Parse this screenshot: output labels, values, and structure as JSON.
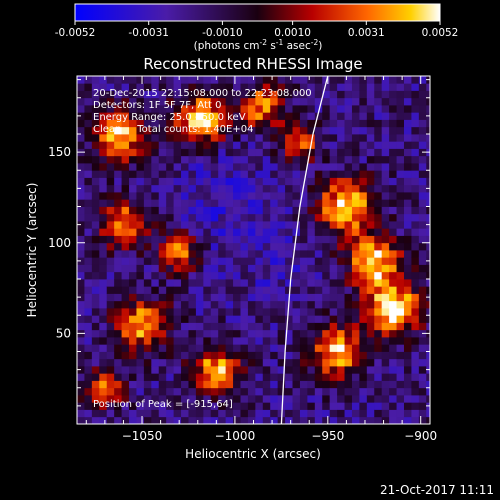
{
  "chart_data": {
    "type": "heatmap",
    "title": "Reconstructed RHESSI Image",
    "xlabel": "Heliocentric X (arcsec)",
    "ylabel": "Heliocentric Y (arcsec)",
    "xlim": [
      -1085,
      -895
    ],
    "ylim": [
      0,
      192
    ],
    "x_ticks": [
      -1050,
      -1000,
      -950,
      -900
    ],
    "y_ticks": [
      50,
      100,
      150
    ],
    "colorbar": {
      "min": -0.0052,
      "max": 0.0052,
      "ticks": [
        "-0.0052",
        "-0.0031",
        "-0.0010",
        "0.0010",
        "0.0031",
        "0.0052"
      ],
      "unit_text": "(photons cm",
      "unit_sup1": "-2",
      "unit_mid": " s",
      "unit_sup2": "-1",
      "unit_mid2": " asec",
      "unit_sup3": "-2",
      "unit_close": ")"
    },
    "annotations": [
      "20-Dec-2015 22:15:08.000 to 22:23:08.000",
      "Detectors: 1F 5F 7F, Att 0",
      "Energy Range: 25.0 - 50.0 keV",
      "Clean     Total counts: 1.40E+04"
    ],
    "peak_label": "Position of Peak = [-915,64]",
    "hot_regions": [
      {
        "x": -1062,
        "y": 160,
        "amp": 0.0045,
        "r": 14
      },
      {
        "x": -1018,
        "y": 168,
        "amp": 0.0048,
        "r": 14
      },
      {
        "x": -985,
        "y": 175,
        "amp": 0.0035,
        "r": 12
      },
      {
        "x": -1060,
        "y": 110,
        "amp": 0.004,
        "r": 12
      },
      {
        "x": -1030,
        "y": 95,
        "amp": 0.0032,
        "r": 11
      },
      {
        "x": -940,
        "y": 120,
        "amp": 0.005,
        "r": 15
      },
      {
        "x": -925,
        "y": 90,
        "amp": 0.0046,
        "r": 14
      },
      {
        "x": -915,
        "y": 64,
        "amp": 0.0052,
        "r": 15
      },
      {
        "x": -945,
        "y": 40,
        "amp": 0.0042,
        "r": 14
      },
      {
        "x": -1050,
        "y": 55,
        "amp": 0.004,
        "r": 14
      },
      {
        "x": -1010,
        "y": 30,
        "amp": 0.004,
        "r": 13
      },
      {
        "x": -1070,
        "y": 20,
        "amp": 0.003,
        "r": 10
      },
      {
        "x": -965,
        "y": 155,
        "amp": 0.0028,
        "r": 10
      }
    ],
    "cold_regions": [
      {
        "x": -1000,
        "y": 110,
        "amp": -0.0022,
        "r": 26
      },
      {
        "x": -1010,
        "y": 140,
        "amp": -0.0016,
        "r": 20
      },
      {
        "x": -975,
        "y": 80,
        "amp": -0.0014,
        "r": 18
      }
    ],
    "limb_curve": [
      [
        -975,
        0
      ],
      [
        -973,
        40
      ],
      [
        -970,
        80
      ],
      [
        -965,
        120
      ],
      [
        -958,
        160
      ],
      [
        -950,
        192
      ]
    ],
    "grid": false
  },
  "footer": {
    "timestamp": "21-Oct-2017 11:11"
  }
}
